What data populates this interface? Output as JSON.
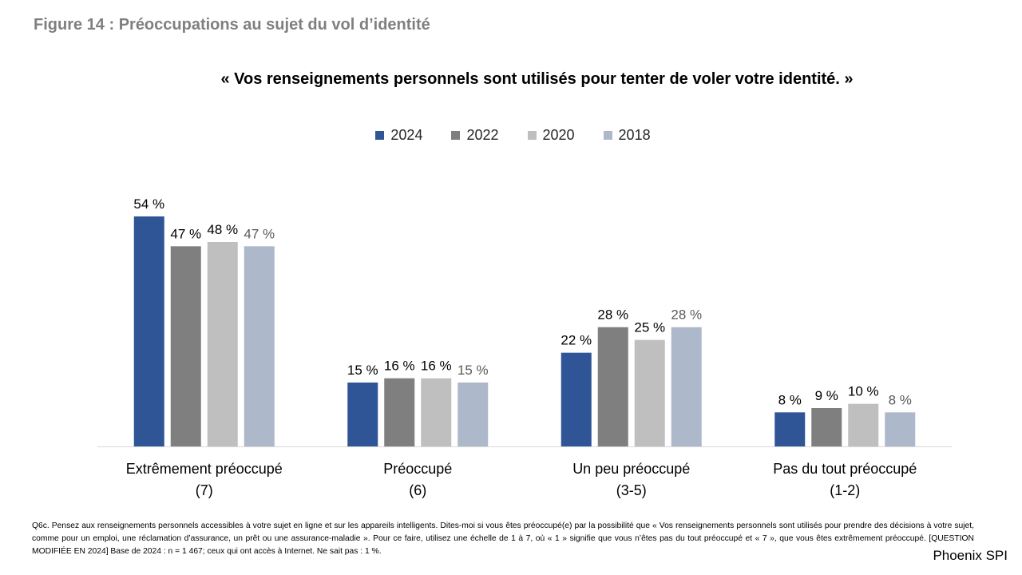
{
  "figure_title": "Figure 14 : Préoccupations au sujet du vol d’identité",
  "brand": "Phoenix SPI",
  "footnote": "Q6c. Pensez aux renseignements personnels accessibles à votre sujet en ligne et sur les appareils intelligents. Dites-moi si vous êtes préoccupé(e) par la possibilité que « Vos renseignements personnels sont utilisés pour prendre des décisions à votre sujet, comme pour un emploi, une réclamation d’assurance, un prêt ou une assurance-maladie ». Pour ce faire, utilisez une échelle de 1 à 7, où « 1 » signifie que vous n’êtes pas du tout préoccupé et « 7 », que vous êtes extrêmement préoccupé. [QUESTION MODIFIÉE EN 2024] Base de 2024 : n = 1 467; ceux qui ont accès à Internet. Ne sait pas : 1 %.",
  "chart_data": {
    "type": "bar",
    "title": "« Vos renseignements personnels sont utilisés pour tenter de voler votre identité. »",
    "categories": [
      [
        "Extrêmement préoccupé",
        "(7)"
      ],
      [
        "Préoccupé",
        "(6)"
      ],
      [
        "Un peu préoccupé",
        "(3-5)"
      ],
      [
        "Pas du tout préoccupé",
        "(1-2)"
      ]
    ],
    "series": [
      {
        "name": "2024",
        "color": "#2f5597",
        "label_color": "#000000",
        "values": [
          54,
          15,
          22,
          8
        ],
        "labels": [
          "54 %",
          "15 %",
          "22 %",
          "8 %"
        ]
      },
      {
        "name": "2022",
        "color": "#7f7f7f",
        "label_color": "#000000",
        "values": [
          47,
          16,
          28,
          9
        ],
        "labels": [
          "47 %",
          "16 %",
          "28 %",
          "9 %"
        ]
      },
      {
        "name": "2020",
        "color": "#bfbfbf",
        "label_color": "#000000",
        "values": [
          48,
          16,
          25,
          10
        ],
        "labels": [
          "48 %",
          "16 %",
          "25 %",
          "10 %"
        ]
      },
      {
        "name": "2018",
        "color": "#adb9ca",
        "label_color": "#595959",
        "values": [
          47,
          15,
          28,
          8
        ],
        "labels": [
          "47 %",
          "15 %",
          "28 %",
          "8 %"
        ]
      }
    ],
    "ylim": [
      0,
      54
    ],
    "legend_position": "top",
    "grid": false,
    "xlabel": "",
    "ylabel": ""
  }
}
